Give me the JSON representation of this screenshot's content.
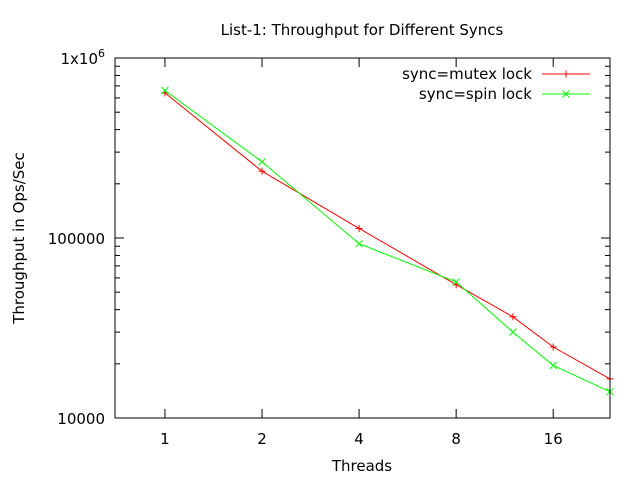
{
  "chart_data": {
    "type": "line",
    "title": "List-1: Throughput for Different Syncs",
    "xlabel": "Threads",
    "ylabel": "Throughput in Ops/Sec",
    "x_scale": "log2",
    "y_scale": "log10",
    "xlim": [
      0.7,
      24
    ],
    "ylim": [
      10000,
      1000000
    ],
    "x_ticks": [
      {
        "value": 1,
        "label": "1"
      },
      {
        "value": 2,
        "label": "2"
      },
      {
        "value": 4,
        "label": "4"
      },
      {
        "value": 8,
        "label": "8"
      },
      {
        "value": 16,
        "label": "16"
      }
    ],
    "y_ticks": [
      {
        "value": 10000,
        "label": "10000"
      },
      {
        "value": 100000,
        "label": "100000"
      },
      {
        "value": 1000000,
        "label": "1x10",
        "label_exp": "6"
      }
    ],
    "grid": false,
    "legend_position": "top-right",
    "series": [
      {
        "name": "sync=mutex lock",
        "color": "#ff0000",
        "marker": "plus",
        "x": [
          1,
          2,
          4,
          8,
          12,
          16,
          24
        ],
        "values": [
          640000,
          235000,
          113000,
          55000,
          36500,
          24800,
          16500
        ]
      },
      {
        "name": "sync=spin lock",
        "color": "#00ff00",
        "marker": "cross",
        "x": [
          1,
          2,
          4,
          8,
          12,
          16,
          24
        ],
        "values": [
          660000,
          265000,
          93000,
          57000,
          30000,
          19600,
          14000
        ]
      }
    ]
  }
}
